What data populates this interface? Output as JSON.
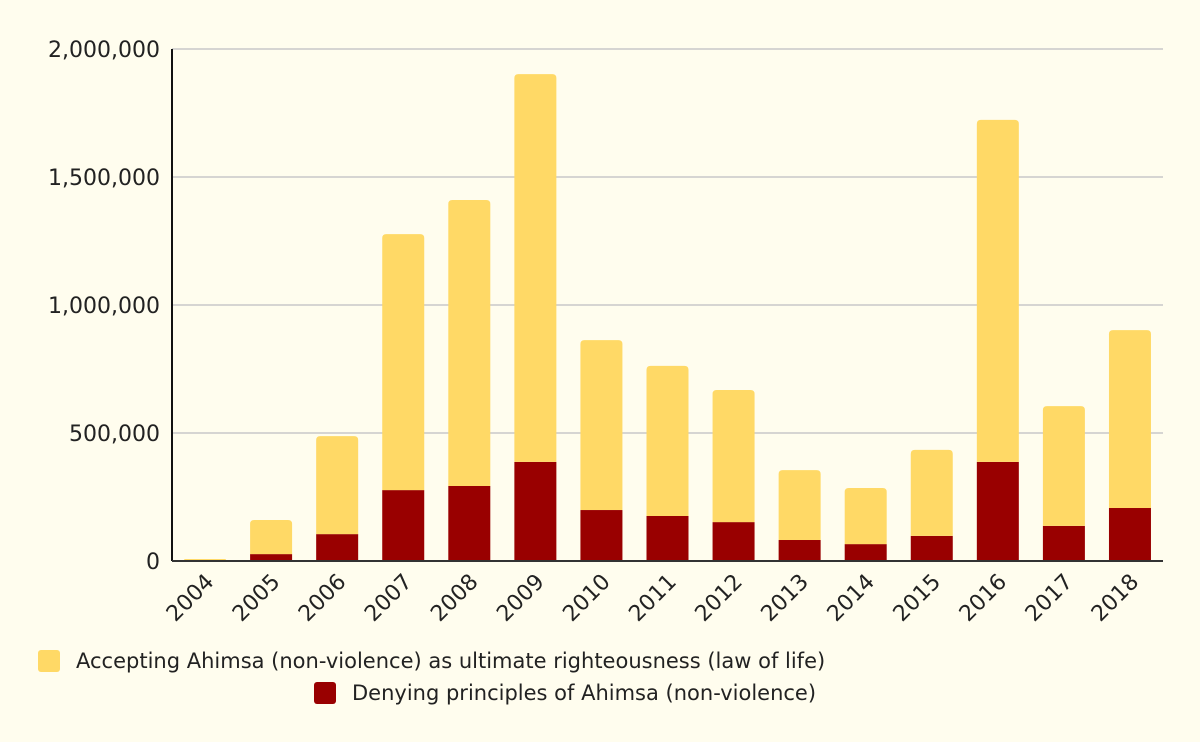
{
  "chart_data": {
    "type": "bar",
    "stacked": true,
    "categories": [
      "2004",
      "2005",
      "2006",
      "2007",
      "2008",
      "2009",
      "2010",
      "2011",
      "2012",
      "2013",
      "2014",
      "2015",
      "2016",
      "2017",
      "2018"
    ],
    "series": [
      {
        "name": "Denying principles of Ahimsa (non-violence)",
        "color": "#990000",
        "values": [
          0,
          27000,
          105000,
          277000,
          293000,
          387000,
          199000,
          176000,
          152000,
          82000,
          66000,
          98000,
          387000,
          137000,
          207000
        ]
      },
      {
        "name": "Accepting Ahimsa (non-violence) as ultimate righteousness (law of life)",
        "color": "#ffd966",
        "values": [
          8000,
          133000,
          383000,
          1000000,
          1117000,
          1515000,
          664000,
          586000,
          516000,
          273000,
          219000,
          336000,
          1336000,
          468000,
          695000
        ]
      }
    ],
    "ylim": [
      0,
      2000000
    ],
    "yticks": [
      "0",
      "500,000",
      "1,000,000",
      "1,500,000",
      "2,000,000"
    ],
    "ytick_values": [
      0,
      500000,
      1000000,
      1500000,
      2000000
    ],
    "grid": true,
    "legend_position": "bottom",
    "legend_order": [
      1,
      0
    ]
  }
}
